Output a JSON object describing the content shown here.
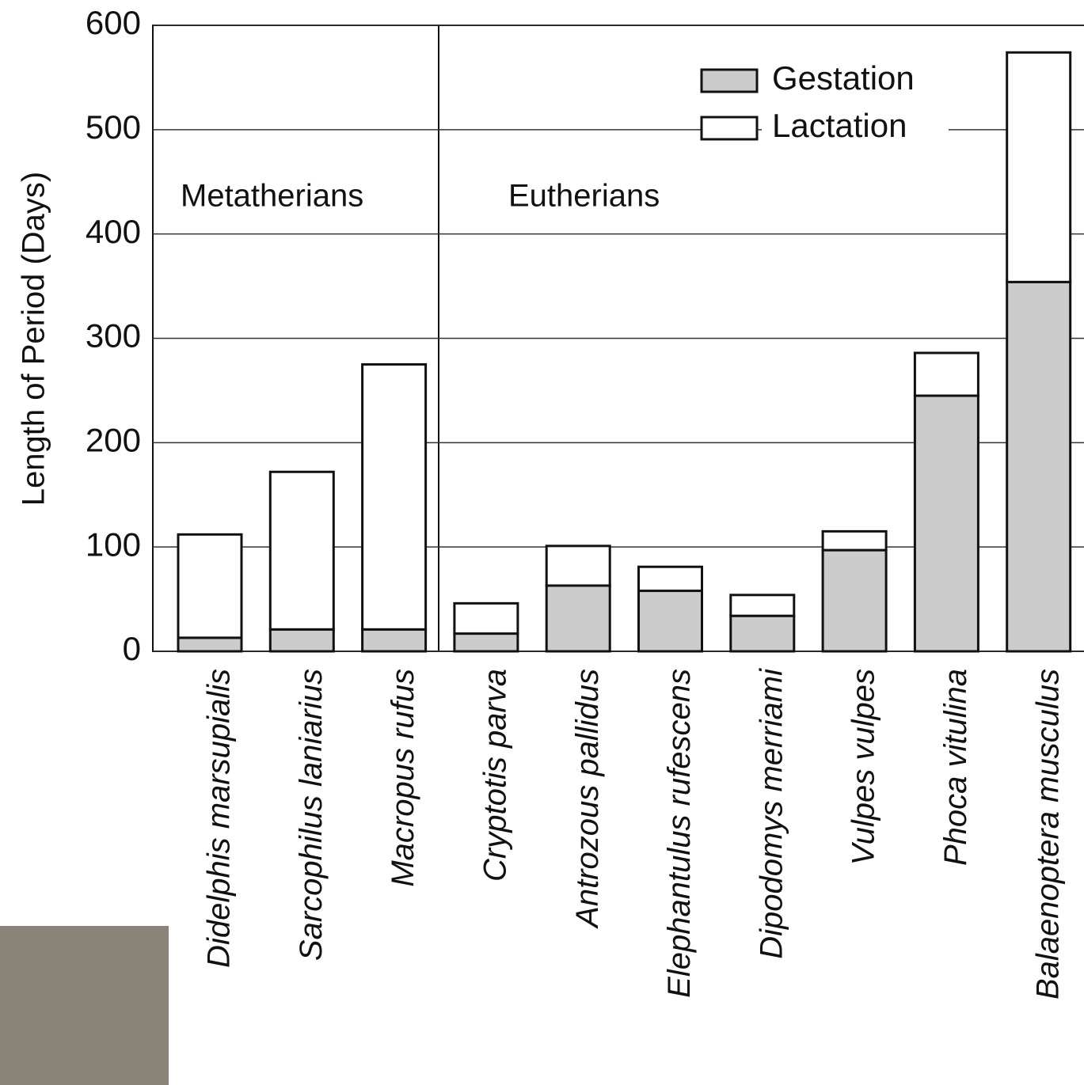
{
  "chart_data": {
    "type": "stacked_bar",
    "y_label": "Length of Period (Days)",
    "annotations": [
      "Metatherians",
      "Eutherians"
    ],
    "categories": [
      "Didelphis marsupialis",
      "Sarcophilus laniarius",
      "Macropus rufus",
      "Cryptotis parva",
      "Antrozous pallidus",
      "Elephantulus rufescens",
      "Dipodomys merriami",
      "Vulpes vulpes",
      "Phoca vitulina",
      "Balaenoptera musculus"
    ],
    "series": [
      {
        "name": "Gestation",
        "color": "#cccccc",
        "values": [
          13,
          21,
          21,
          17,
          63,
          58,
          34,
          97,
          245,
          354
        ]
      },
      {
        "name": "Lactation",
        "color": "#ffffff",
        "values": [
          99,
          151,
          254,
          29,
          38,
          23,
          20,
          18,
          41,
          220
        ]
      }
    ],
    "ylim": [
      0,
      600
    ],
    "yticks": [
      0,
      100,
      200,
      300,
      400,
      500,
      600
    ],
    "grid": true,
    "legend": "upper right"
  }
}
